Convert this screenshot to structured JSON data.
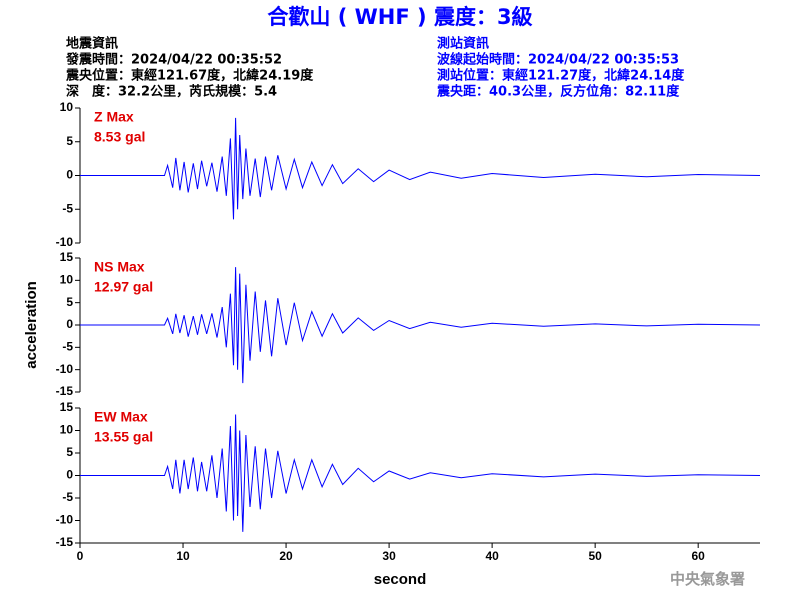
{
  "header": {
    "title": "合歡山 ( WHF ) 震度：3級",
    "left": [
      "地震資訊",
      "發震時間：2024/04/22 00:35:52",
      "震央位置：東經121.67度，北緯24.19度",
      "深　度：32.2公里，芮氏規模：5.4"
    ],
    "right": [
      "測站資訊",
      "波線起始時間：2024/04/22 00:35:53",
      "測站位置：東經121.27度，北緯24.14度",
      "震央距：40.3公里，反方位角：82.11度"
    ],
    "footer": "中央氣象署"
  },
  "chart_data": [
    {
      "type": "line",
      "label": "Z Max",
      "max_label": "8.53 gal",
      "color": "#0000ff",
      "x": [
        0,
        8.2,
        8.5,
        9.0,
        9.3,
        9.7,
        10.1,
        10.5,
        11.0,
        11.4,
        11.8,
        12.3,
        12.8,
        13.3,
        13.8,
        14.2,
        14.6,
        14.9,
        15.1,
        15.3,
        15.5,
        15.8,
        16.1,
        16.5,
        17.0,
        17.5,
        18.0,
        18.6,
        19.2,
        20.0,
        20.8,
        21.6,
        22.5,
        23.5,
        24.5,
        25.5,
        27,
        28.5,
        30,
        32,
        34,
        37,
        40,
        45,
        50,
        55,
        60,
        66
      ],
      "values": [
        0,
        0,
        1.5,
        -1.8,
        2.6,
        -2.2,
        2.0,
        -2.5,
        1.8,
        -2.0,
        2.2,
        -1.6,
        1.9,
        -2.4,
        2.8,
        -3.0,
        5.5,
        -6.5,
        8.53,
        -5.0,
        6.0,
        -3.5,
        4.0,
        -3.0,
        2.5,
        -3.2,
        2.8,
        -2.2,
        3.0,
        -2.0,
        2.4,
        -1.8,
        2.0,
        -1.5,
        1.6,
        -1.2,
        1.0,
        -0.9,
        0.8,
        -0.6,
        0.5,
        -0.4,
        0.3,
        -0.3,
        0.2,
        -0.2,
        0.15,
        0
      ],
      "xlim": [
        0,
        66
      ],
      "ylim": [
        -10,
        10
      ],
      "yticks": [
        10,
        5,
        0,
        -5,
        -10
      ]
    },
    {
      "type": "line",
      "label": "NS Max",
      "max_label": "12.97 gal",
      "color": "#0000ff",
      "ylabel": "acceleration",
      "x": [
        0,
        8.2,
        8.5,
        9.0,
        9.3,
        9.7,
        10.1,
        10.5,
        11.0,
        11.4,
        11.8,
        12.3,
        12.8,
        13.3,
        13.8,
        14.2,
        14.6,
        14.9,
        15.1,
        15.3,
        15.5,
        15.8,
        16.1,
        16.5,
        17.0,
        17.5,
        18.0,
        18.6,
        19.2,
        20.0,
        20.8,
        21.6,
        22.5,
        23.5,
        24.5,
        25.5,
        27,
        28.5,
        30,
        32,
        34,
        37,
        40,
        45,
        50,
        55,
        60,
        66
      ],
      "values": [
        0,
        0,
        1.5,
        -2.0,
        2.5,
        -1.8,
        2.2,
        -2.6,
        2.0,
        -2.2,
        2.4,
        -2.0,
        2.6,
        -2.8,
        4.0,
        -5.0,
        7.0,
        -9.0,
        12.97,
        -10.0,
        11.5,
        -13.0,
        9.0,
        -8.0,
        7.5,
        -6.0,
        5.5,
        -7.0,
        6.0,
        -4.5,
        5.0,
        -3.5,
        3.0,
        -2.5,
        2.5,
        -1.8,
        1.6,
        -1.2,
        1.0,
        -0.8,
        0.6,
        -0.5,
        0.4,
        -0.3,
        0.25,
        -0.2,
        0.15,
        0
      ],
      "xlim": [
        0,
        66
      ],
      "ylim": [
        -15,
        15
      ],
      "yticks": [
        15,
        10,
        5,
        0,
        -5,
        -10,
        -15
      ]
    },
    {
      "type": "line",
      "label": "EW Max",
      "max_label": "13.55 gal",
      "color": "#0000ff",
      "xlabel": "second",
      "x": [
        0,
        8.2,
        8.5,
        9.0,
        9.3,
        9.7,
        10.1,
        10.5,
        11.0,
        11.4,
        11.8,
        12.3,
        12.8,
        13.3,
        13.8,
        14.2,
        14.6,
        14.9,
        15.1,
        15.3,
        15.5,
        15.8,
        16.1,
        16.5,
        17.0,
        17.5,
        18.0,
        18.6,
        19.2,
        20.0,
        20.8,
        21.6,
        22.5,
        23.5,
        24.5,
        25.5,
        27,
        28.5,
        30,
        32,
        34,
        37,
        40,
        45,
        50,
        55,
        60,
        66
      ],
      "values": [
        0,
        0,
        2.0,
        -3.0,
        3.5,
        -4.0,
        3.5,
        -3.0,
        4.0,
        -3.5,
        3.0,
        -3.5,
        4.5,
        -5.0,
        6.0,
        -8.0,
        11.0,
        -10.0,
        13.55,
        -9.0,
        10.0,
        -12.5,
        9.0,
        -7.0,
        6.5,
        -7.5,
        6.0,
        -5.0,
        5.5,
        -4.0,
        3.5,
        -3.0,
        3.5,
        -2.5,
        2.5,
        -2.0,
        1.6,
        -1.4,
        1.0,
        -0.8,
        0.6,
        -0.5,
        0.4,
        -0.3,
        0.3,
        -0.2,
        0.15,
        0
      ],
      "xlim": [
        0,
        66
      ],
      "ylim": [
        -15,
        15
      ],
      "yticks": [
        15,
        10,
        5,
        0,
        -5,
        -10,
        -15
      ],
      "xticks": [
        0,
        10,
        20,
        30,
        40,
        50,
        60
      ]
    }
  ]
}
